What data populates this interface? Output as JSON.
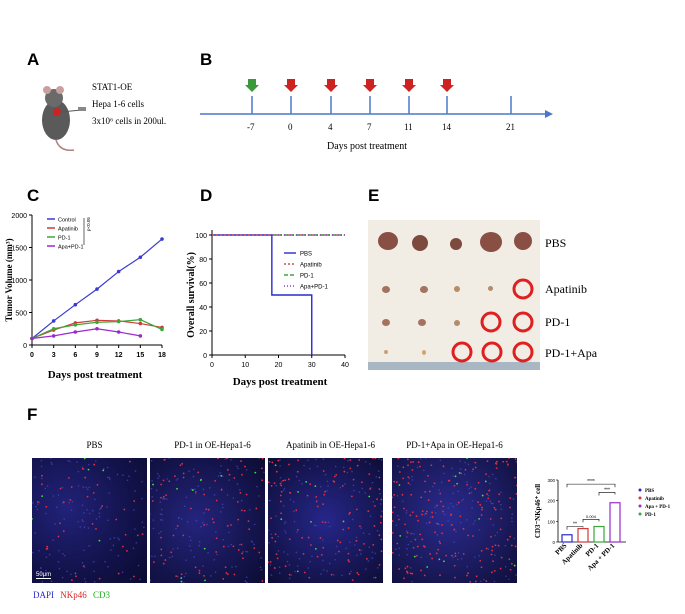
{
  "panels": {
    "A": "A",
    "B": "B",
    "C": "C",
    "D": "D",
    "E": "E",
    "F": "F"
  },
  "panel_a": {
    "line1": "STAT1-OE",
    "line2": "Hepa 1-6 cells",
    "line3": "3x10⁶ cells in 200ul."
  },
  "panel_b": {
    "title": "Days post treatment",
    "ticks": [
      "-7",
      "0",
      "4",
      "7",
      "11",
      "14",
      "21"
    ],
    "arrow_colors": {
      "inoculation": "#3a9a3a",
      "treatment": "#cc2222"
    }
  },
  "chart_data": [
    {
      "id": "C",
      "type": "line",
      "title": "",
      "xlabel": "Days post treatment",
      "ylabel": "Tumor Volume (mm³)",
      "x": [
        0,
        3,
        6,
        9,
        12,
        15,
        18
      ],
      "xlim": [
        0,
        18
      ],
      "ylim": [
        0,
        2000
      ],
      "xticks": [
        "0",
        "3",
        "6",
        "9",
        "12",
        "15",
        "18"
      ],
      "yticks": [
        "0",
        "500",
        "1000",
        "1500",
        "2000"
      ],
      "significance": "p<0.05",
      "series": [
        {
          "name": "Control",
          "color": "#3a3ad0",
          "values": [
            100,
            370,
            620,
            860,
            1130,
            1350,
            1630
          ]
        },
        {
          "name": "Apatinib",
          "color": "#d03a3a",
          "values": [
            100,
            230,
            340,
            380,
            370,
            330,
            270
          ]
        },
        {
          "name": "PD-1",
          "color": "#3aa83a",
          "values": [
            100,
            250,
            310,
            350,
            360,
            390,
            240
          ]
        },
        {
          "name": "Apa+PD-1",
          "color": "#9a2ad0",
          "values": [
            100,
            140,
            200,
            250,
            200,
            140,
            null
          ]
        }
      ]
    },
    {
      "id": "D",
      "type": "line",
      "title": "",
      "xlabel": "Days post treatment",
      "ylabel": "Overall survival(%)",
      "xlim": [
        0,
        40
      ],
      "ylim": [
        0,
        100
      ],
      "xticks": [
        "0",
        "10",
        "20",
        "30",
        "40"
      ],
      "yticks": [
        "0",
        "20",
        "40",
        "60",
        "80",
        "100"
      ],
      "series": [
        {
          "name": "PBS",
          "color": "#2a2ad0",
          "steps": [
            [
              0,
              100
            ],
            [
              18,
              100
            ],
            [
              18,
              50
            ],
            [
              30,
              50
            ],
            [
              30,
              0
            ]
          ]
        },
        {
          "name": "Apatinib",
          "color": "#d05050",
          "steps": [
            [
              0,
              100
            ],
            [
              40,
              100
            ]
          ]
        },
        {
          "name": "PD-1",
          "color": "#3aa83a",
          "steps": [
            [
              18,
              100
            ],
            [
              40,
              100
            ]
          ]
        },
        {
          "name": "Apa+PD-1",
          "color": "#8a3ad0",
          "steps": [
            [
              18,
              100
            ],
            [
              40,
              100
            ]
          ]
        }
      ]
    },
    {
      "id": "F",
      "type": "bar",
      "title": "",
      "xlabel": "",
      "ylabel": "CD3⁻NKp46⁺ cell",
      "categories": [
        "PBS",
        "Apatinib",
        "PD-1",
        "Apa + PD-1"
      ],
      "values": [
        35,
        65,
        75,
        190
      ],
      "ylim": [
        0,
        300
      ],
      "yticks": [
        "0",
        "100",
        "200",
        "300"
      ],
      "colors": [
        "#2a2ad0",
        "#d03a3a",
        "#3aa83a",
        "#9a2ad0"
      ],
      "significance": [
        "**",
        "0.004",
        "****",
        "***"
      ],
      "legend": [
        "PBS",
        "Apatinib",
        "Apa + PD-1",
        "PD-1"
      ]
    }
  ],
  "panel_e": {
    "rows": [
      "PBS",
      "Apatinib",
      "PD-1",
      "PD-1+Apa"
    ]
  },
  "panel_f": {
    "titles": [
      "PBS",
      "PD-1 in OE-Hepa1-6",
      "Apatinib in OE-Hepa1-6",
      "PD-1+Apa in OE-Hepa1-6"
    ],
    "scale_bar": "50μm",
    "stain_legend": {
      "dapi": "DAPI",
      "nkp46": "NKp46",
      "cd3": "CD3"
    }
  }
}
